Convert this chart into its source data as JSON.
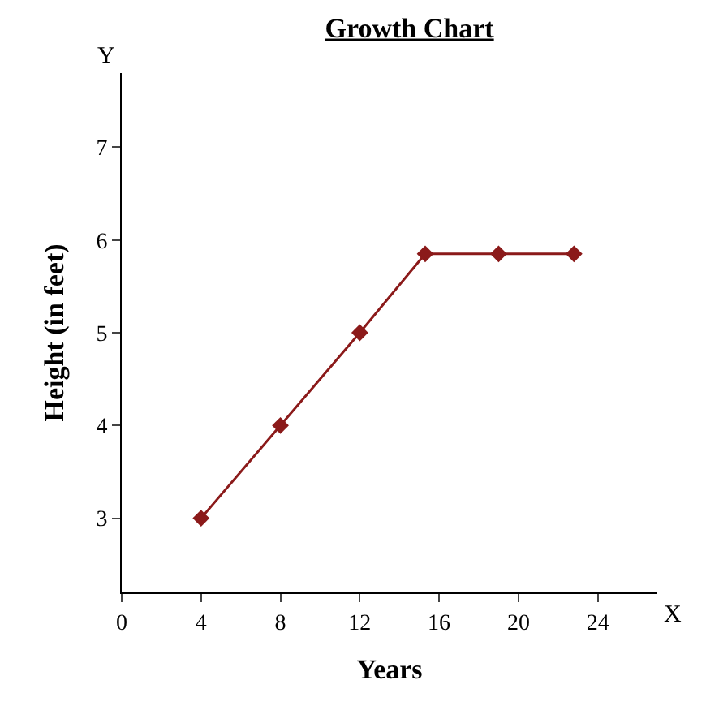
{
  "chart_data": {
    "type": "line",
    "title": "Growth Chart",
    "xlabel": "Years",
    "ylabel": "Height (in feet)",
    "x": [
      4,
      8,
      12,
      15.3,
      19,
      22.8
    ],
    "series": [
      {
        "color": "#8b1a1a",
        "values": [
          3,
          4,
          5,
          5.85,
          5.85,
          5.85
        ]
      }
    ],
    "xlim": [
      0,
      27
    ],
    "xticks": [
      0,
      4,
      8,
      12,
      16,
      20,
      24
    ],
    "ylim": [
      2.2,
      7.8
    ],
    "yticks": [
      3,
      4,
      5,
      6,
      7
    ],
    "annotations": [
      "Y",
      "X"
    ],
    "marker": "diamond",
    "line_style": "solid",
    "legend": false
  }
}
